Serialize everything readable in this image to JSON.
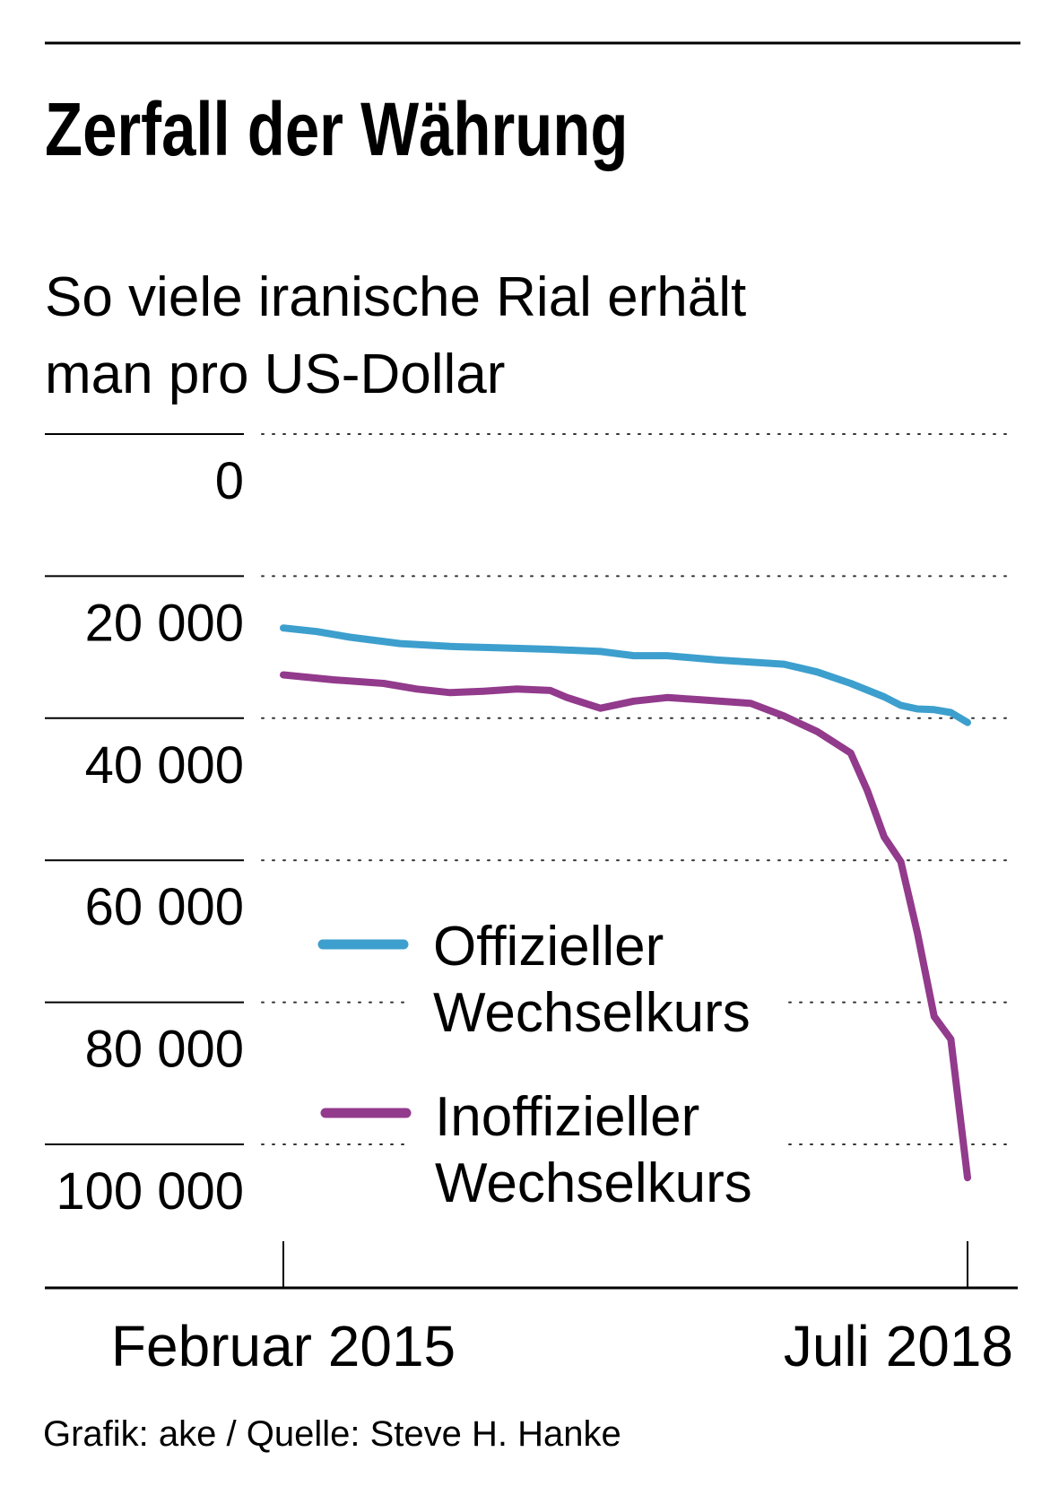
{
  "chart_data": {
    "type": "line",
    "title": "Zerfall der Währung",
    "subtitle_line1": "So viele iranische Rial erhält",
    "subtitle_line2": "man pro US-Dollar",
    "y_axis": {
      "ticks": [
        0,
        20000,
        40000,
        60000,
        80000,
        100000
      ],
      "tick_labels": [
        "0",
        "20 000",
        "40 000",
        "60 000",
        "80 000",
        "100 000"
      ],
      "inverted": true,
      "ylim": [
        0,
        120000
      ]
    },
    "x_axis": {
      "tick_labels": [
        "Februar 2015",
        "Juli 2018"
      ],
      "range": [
        "2015-02",
        "2018-07"
      ]
    },
    "grid": "dotted-horizontal",
    "legend_position": "center-right",
    "series": [
      {
        "name_line1": "Offizieller",
        "name_line2": "Wechselkurs",
        "color": "#3d9fcd",
        "points": [
          [
            "2015-02",
            27300
          ],
          [
            "2015-04",
            27800
          ],
          [
            "2015-06",
            28600
          ],
          [
            "2015-09",
            29500
          ],
          [
            "2015-12",
            29900
          ],
          [
            "2016-03",
            30100
          ],
          [
            "2016-06",
            30300
          ],
          [
            "2016-09",
            30600
          ],
          [
            "2016-11",
            31200
          ],
          [
            "2017-01",
            31200
          ],
          [
            "2017-04",
            31800
          ],
          [
            "2017-06",
            32100
          ],
          [
            "2017-08",
            32400
          ],
          [
            "2017-10",
            33500
          ],
          [
            "2017-12",
            35100
          ],
          [
            "2018-02",
            37000
          ],
          [
            "2018-03",
            38200
          ],
          [
            "2018-04",
            38700
          ],
          [
            "2018-05",
            38800
          ],
          [
            "2018-06",
            39200
          ],
          [
            "2018-07",
            40600
          ]
        ]
      },
      {
        "name_line1": "Inoffizieller",
        "name_line2": "Wechselkurs",
        "color": "#923a8c",
        "points": [
          [
            "2015-02",
            33900
          ],
          [
            "2015-05",
            34600
          ],
          [
            "2015-08",
            35100
          ],
          [
            "2015-10",
            35900
          ],
          [
            "2015-12",
            36400
          ],
          [
            "2016-02",
            36200
          ],
          [
            "2016-04",
            35900
          ],
          [
            "2016-06",
            36100
          ],
          [
            "2016-07",
            37100
          ],
          [
            "2016-09",
            38600
          ],
          [
            "2016-11",
            37600
          ],
          [
            "2017-01",
            37100
          ],
          [
            "2017-03",
            37400
          ],
          [
            "2017-06",
            37900
          ],
          [
            "2017-08",
            39700
          ],
          [
            "2017-10",
            41900
          ],
          [
            "2017-12",
            44900
          ],
          [
            "2018-01",
            50200
          ],
          [
            "2018-02",
            56700
          ],
          [
            "2018-03",
            60200
          ],
          [
            "2018-04",
            70300
          ],
          [
            "2018-05",
            82000
          ],
          [
            "2018-06",
            85200
          ],
          [
            "2018-07",
            104700
          ]
        ]
      }
    ]
  },
  "source": "Grafik: ake / Quelle: Steve H. Hanke"
}
